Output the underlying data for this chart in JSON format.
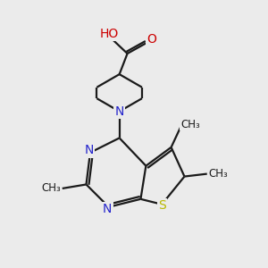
{
  "background_color": "#ebebeb",
  "bond_color": "#1a1a1a",
  "N_color": "#2525cc",
  "O_color": "#cc0000",
  "S_color": "#b8b800",
  "lw": 1.6,
  "figsize": [
    3.0,
    3.0
  ],
  "dpi": 100,
  "xlim": [
    0,
    10
  ],
  "ylim": [
    0,
    10
  ]
}
